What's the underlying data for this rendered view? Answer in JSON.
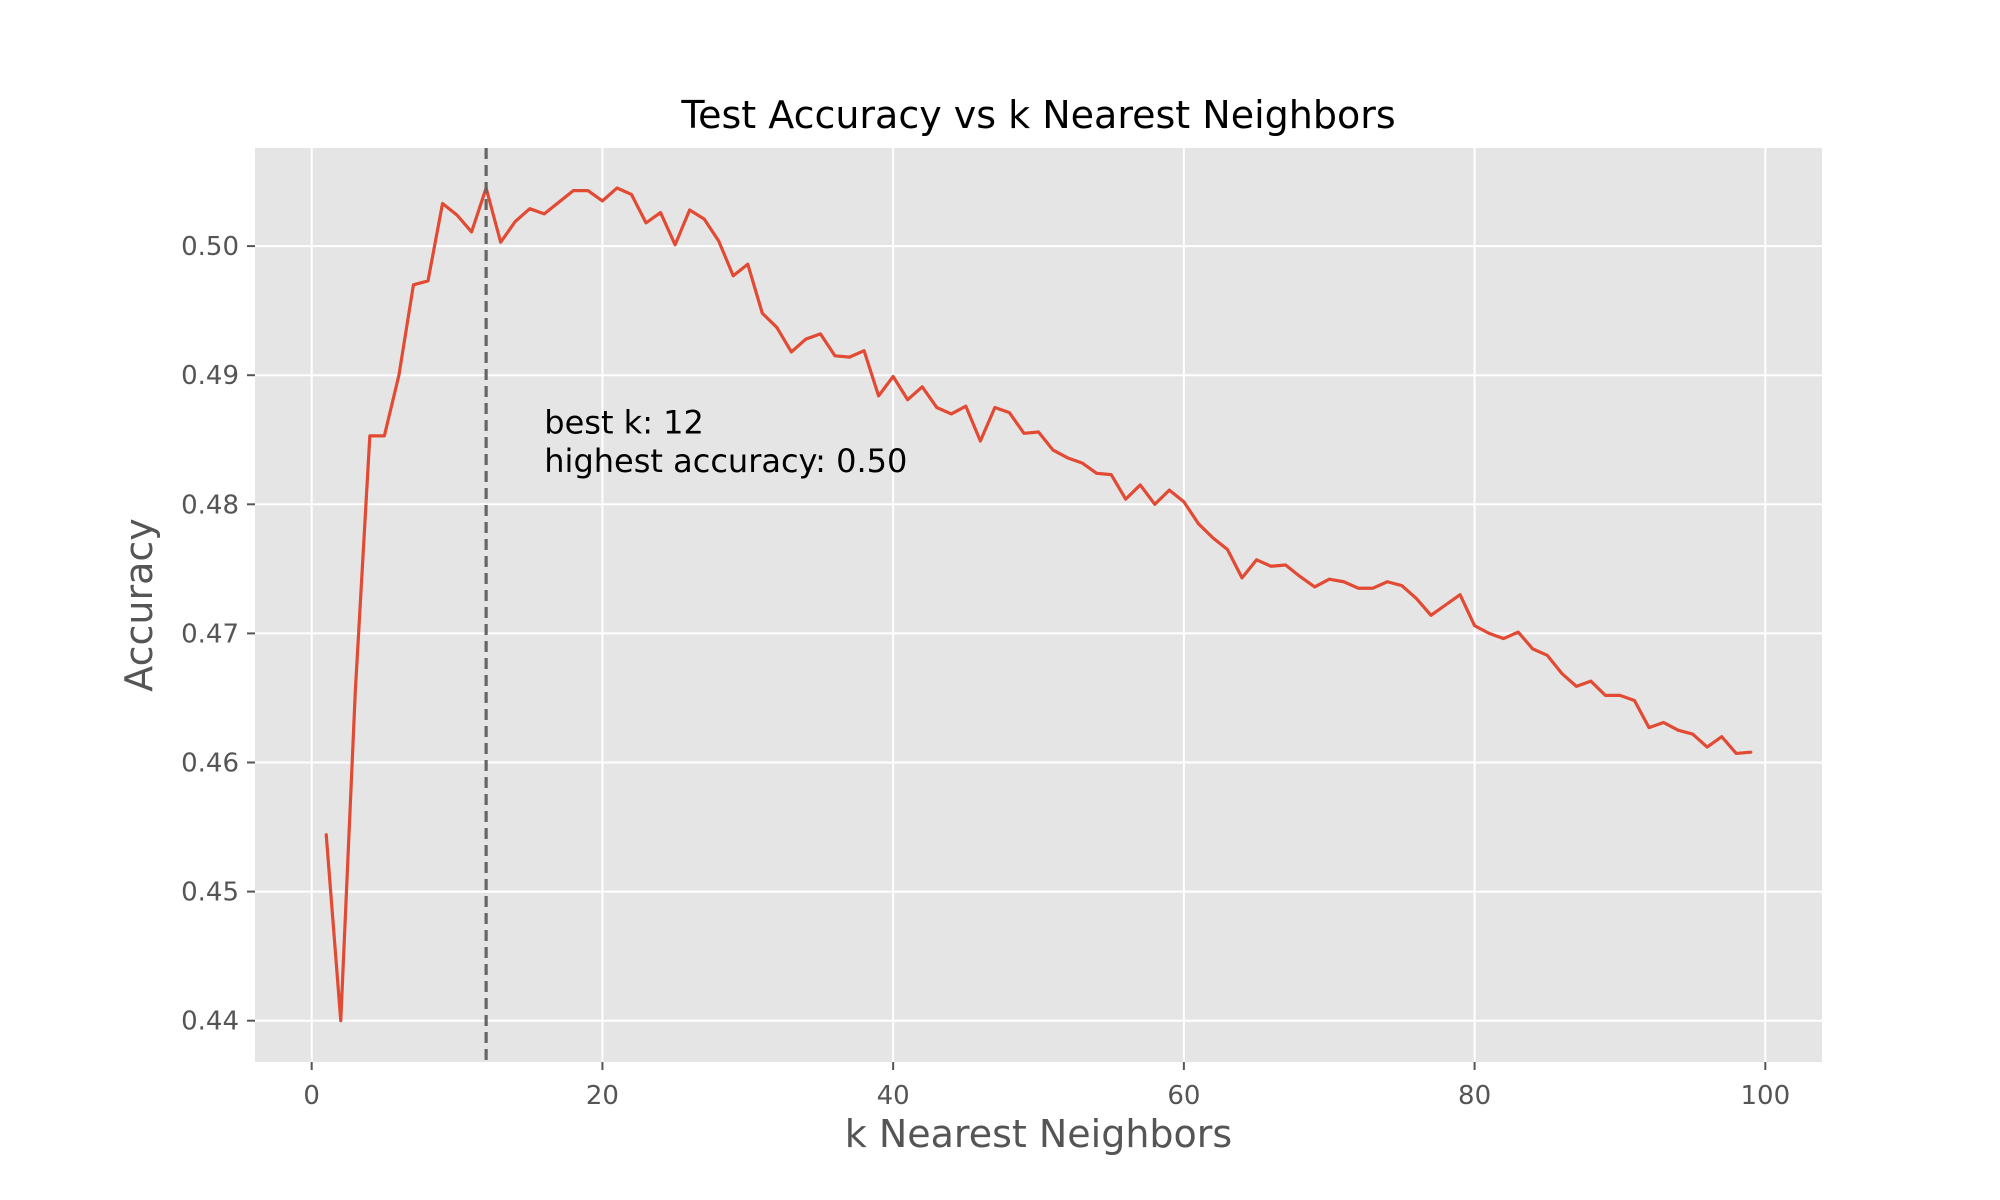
{
  "chart_data": {
    "type": "line",
    "title": "Test Accuracy vs k Nearest Neighbors",
    "xlabel": "k Nearest Neighbors",
    "ylabel": "Accuracy",
    "xlim": [
      -3.9,
      103.9
    ],
    "ylim": [
      0.4368,
      0.5076
    ],
    "xticks": [
      0,
      20,
      40,
      60,
      80,
      100
    ],
    "yticks": [
      0.44,
      0.45,
      0.46,
      0.47,
      0.48,
      0.49,
      0.5
    ],
    "xtick_labels": [
      "0",
      "20",
      "40",
      "60",
      "80",
      "100"
    ],
    "ytick_labels": [
      "0.44",
      "0.45",
      "0.46",
      "0.47",
      "0.48",
      "0.49",
      "0.50"
    ],
    "grid": true,
    "style": "ggplot",
    "series": [
      {
        "color": "#E24A33",
        "x": [
          1,
          2,
          3,
          4,
          5,
          6,
          7,
          8,
          9,
          10,
          11,
          12,
          13,
          14,
          15,
          16,
          17,
          18,
          19,
          20,
          21,
          22,
          23,
          24,
          25,
          26,
          27,
          28,
          29,
          30,
          31,
          32,
          33,
          34,
          35,
          36,
          37,
          38,
          39,
          40,
          41,
          42,
          43,
          44,
          45,
          46,
          47,
          48,
          49,
          50,
          51,
          52,
          53,
          54,
          55,
          56,
          57,
          58,
          59,
          60,
          61,
          62,
          63,
          64,
          65,
          66,
          67,
          68,
          69,
          70,
          71,
          72,
          73,
          74,
          75,
          76,
          77,
          78,
          79,
          80,
          81,
          82,
          83,
          84,
          85,
          86,
          87,
          88,
          89,
          90,
          91,
          92,
          93,
          94,
          95,
          96,
          97,
          98,
          99
        ],
        "y": [
          0.4544,
          0.44,
          0.4655,
          0.4853,
          0.4853,
          0.49,
          0.497,
          0.4973,
          0.5033,
          0.5024,
          0.5011,
          0.5045,
          0.5003,
          0.5019,
          0.5029,
          0.5025,
          0.5034,
          0.5043,
          0.5043,
          0.5035,
          0.5045,
          0.504,
          0.5018,
          0.5026,
          0.5001,
          0.5028,
          0.5021,
          0.5004,
          0.4977,
          0.4986,
          0.4948,
          0.4937,
          0.4918,
          0.4928,
          0.4932,
          0.4915,
          0.4914,
          0.4919,
          0.4884,
          0.4899,
          0.4881,
          0.4891,
          0.4875,
          0.487,
          0.4876,
          0.4849,
          0.4875,
          0.4871,
          0.4855,
          0.4856,
          0.4842,
          0.4836,
          0.4832,
          0.4824,
          0.4823,
          0.4804,
          0.4815,
          0.48,
          0.4811,
          0.4802,
          0.4785,
          0.4774,
          0.4765,
          0.4743,
          0.4757,
          0.4752,
          0.4753,
          0.4744,
          0.4736,
          0.4742,
          0.474,
          0.4735,
          0.4735,
          0.474,
          0.4737,
          0.4727,
          0.4714,
          0.4722,
          0.473,
          0.4706,
          0.47,
          0.4696,
          0.4701,
          0.4688,
          0.4683,
          0.4669,
          0.4659,
          0.4663,
          0.4652,
          0.4652,
          0.4648,
          0.4627,
          0.4631,
          0.4625,
          0.4622,
          0.4612,
          0.462,
          0.4607,
          0.4608
        ]
      }
    ],
    "vline": {
      "x": 12,
      "style": "dashed",
      "color": "#666666"
    },
    "annotations": [
      {
        "text": "best k: 12",
        "x": 16,
        "y": 0.4855
      },
      {
        "text": "highest accuracy: 0.50",
        "x": 16,
        "y": 0.4825
      }
    ],
    "colors": {
      "plot_background": "#E5E5E5",
      "grid": "#FFFFFF",
      "line": "#E24A33",
      "tick_text": "#555555",
      "title_text": "#000000"
    }
  }
}
